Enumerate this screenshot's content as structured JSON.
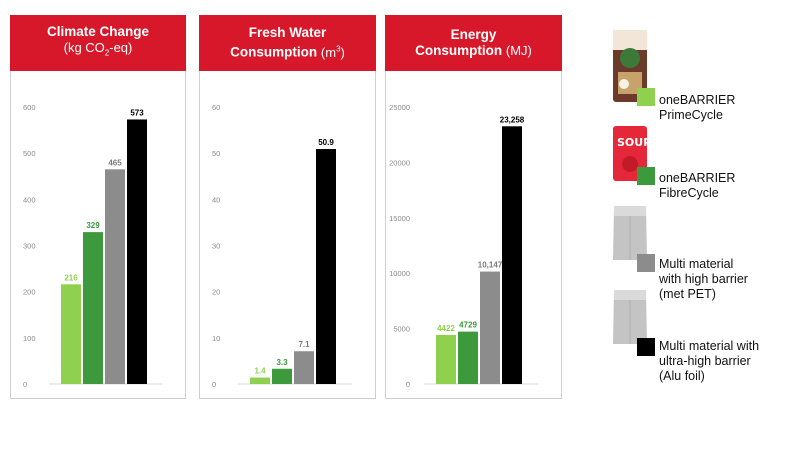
{
  "colors": {
    "header_red": "#d7182a",
    "series": [
      "#8fd14f",
      "#3c9a3c",
      "#8c8c8c",
      "#000000"
    ],
    "label_colors": [
      "#8fd14f",
      "#3c9a3c",
      "#7a7a7a",
      "#000000"
    ],
    "tick_color": "#8a8a8a",
    "grid_color": "#d9d9d9"
  },
  "panels": [
    {
      "title": "Climate Change",
      "unit_main": "(kg CO",
      "unit_sub": "2",
      "unit_end": "-eq)"
    },
    {
      "title": "Fresh Water",
      "title2": "Consumption",
      "unit_main": "(m",
      "unit_sup": "3",
      "unit_end": ")"
    },
    {
      "title": "Energy",
      "title2": "Consumption",
      "unit_main": "(MJ)"
    }
  ],
  "legend": [
    {
      "line1": "oneBARRIER",
      "line2": "PrimeCycle",
      "icon": "pouch-primecycle-icon"
    },
    {
      "line1": "oneBARRIER",
      "line2": "FibreCycle",
      "icon": "pouch-fibrecycle-icon"
    },
    {
      "line1": "Multi material",
      "line2": "with high barrier",
      "line3": "(met PET)",
      "icon": "pouch-silver-icon"
    },
    {
      "line1": "Multi material with",
      "line2": "ultra-high barrier",
      "line3": "(Alu foil)",
      "icon": "pouch-silver-icon"
    }
  ],
  "chart_data": [
    {
      "type": "bar",
      "title": "Climate Change",
      "ylabel": "(kg CO2-eq)",
      "ylim": [
        0,
        600
      ],
      "yticks": [
        0,
        100,
        200,
        300,
        400,
        500,
        600
      ],
      "series": [
        {
          "name": "oneBARRIER PrimeCycle",
          "value": 216,
          "label": "216"
        },
        {
          "name": "oneBARRIER FibreCycle",
          "value": 329,
          "label": "329"
        },
        {
          "name": "Multi material with high barrier (met PET)",
          "value": 465,
          "label": "465"
        },
        {
          "name": "Multi material with ultra-high barrier (Alu foil)",
          "value": 573,
          "label": "573"
        }
      ]
    },
    {
      "type": "bar",
      "title": "Fresh Water Consumption",
      "ylabel": "(m3)",
      "ylim": [
        0,
        60
      ],
      "yticks": [
        0,
        10,
        20,
        30,
        40,
        50,
        60
      ],
      "series": [
        {
          "name": "oneBARRIER PrimeCycle",
          "value": 1.4,
          "label": "1.4"
        },
        {
          "name": "oneBARRIER FibreCycle",
          "value": 3.3,
          "label": "3.3"
        },
        {
          "name": "Multi material with high barrier (met PET)",
          "value": 7.1,
          "label": "7.1"
        },
        {
          "name": "Multi material with ultra-high barrier (Alu foil)",
          "value": 50.9,
          "label": "50.9"
        }
      ]
    },
    {
      "type": "bar",
      "title": "Energy Consumption",
      "ylabel": "(MJ)",
      "ylim": [
        0,
        25000
      ],
      "yticks": [
        0,
        5000,
        10000,
        15000,
        20000,
        25000
      ],
      "series": [
        {
          "name": "oneBARRIER PrimeCycle",
          "value": 4422,
          "label": "4422"
        },
        {
          "name": "oneBARRIER FibreCycle",
          "value": 4729,
          "label": "4729"
        },
        {
          "name": "Multi material with high barrier (met PET)",
          "value": 10147,
          "label": "10,147"
        },
        {
          "name": "Multi material with ultra-high barrier (Alu foil)",
          "value": 23258,
          "label": "23,258"
        }
      ]
    }
  ]
}
